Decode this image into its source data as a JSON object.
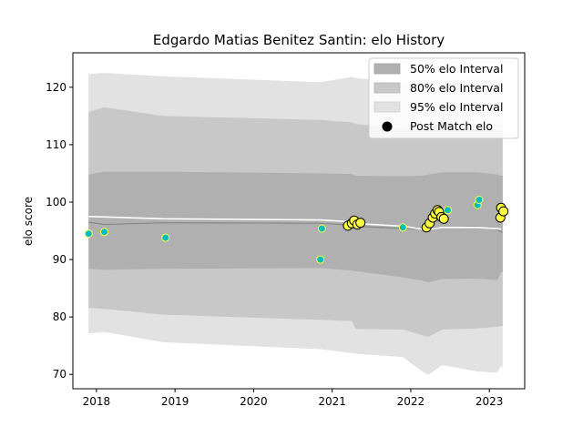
{
  "chart_data": {
    "type": "scatter",
    "title": "Edgardo Matias Benitez Santin: elo History",
    "xlabel": "",
    "ylabel": "elo score",
    "xlim": [
      2017.7,
      2023.45
    ],
    "ylim": [
      67.5,
      126
    ],
    "x_ticks": [
      2018,
      2019,
      2020,
      2021,
      2022,
      2023
    ],
    "y_ticks": [
      70,
      80,
      90,
      100,
      110,
      120
    ],
    "grid": false,
    "legend_position": "top-right",
    "legend": [
      {
        "label": "50% elo Interval",
        "color": "#b0b0b0"
      },
      {
        "label": "80% elo Interval",
        "color": "#c8c8c8"
      },
      {
        "label": "95% elo Interval",
        "color": "#e2e2e2"
      },
      {
        "label": "Post Match elo",
        "color": "#000000"
      }
    ],
    "colors": {
      "band_50": "#b0b0b0",
      "band_80": "#c8c8c8",
      "band_95": "#e2e2e2",
      "mean_line": "#888888",
      "post_match_line": "#ffffff",
      "post_match_fill": "#ffff44",
      "other_fill": "#00bcbc"
    },
    "intervals": {
      "x": [
        2017.9,
        2018.1,
        2018.85,
        2020.85,
        2021.25,
        2021.3,
        2021.9,
        2022.15,
        2022.22,
        2022.4,
        2022.85,
        2023.1,
        2023.15,
        2023.17
      ],
      "mean": [
        96.5,
        96.1,
        96.4,
        96.3,
        96.0,
        95.8,
        95.4,
        95.4,
        95.4,
        95.6,
        95.7,
        95.2,
        94.8,
        94.8
      ],
      "p50_upper": [
        104.8,
        105.3,
        105.3,
        105.0,
        104.9,
        104.6,
        104.5,
        104.6,
        104.8,
        105.2,
        105.2,
        104.8,
        104.6,
        104.6
      ],
      "p50_lower": [
        88.4,
        88.2,
        88.4,
        88.5,
        88.1,
        88.0,
        86.9,
        86.3,
        86.0,
        86.6,
        86.7,
        86.4,
        87.8,
        87.8
      ],
      "p80_upper": [
        115.7,
        116.5,
        115.0,
        114.3,
        113.9,
        113.6,
        112.8,
        112.4,
        112.6,
        113.5,
        113.6,
        112.5,
        112.5,
        112.5
      ],
      "p80_lower": [
        81.6,
        81.4,
        80.4,
        79.5,
        79.3,
        77.9,
        77.8,
        76.8,
        76.5,
        77.8,
        78.0,
        78.3,
        78.4,
        78.4
      ],
      "p95_upper": [
        122.3,
        122.5,
        121.9,
        120.9,
        121.8,
        121.6,
        120.8,
        121.3,
        120.9,
        121.1,
        121.4,
        121.2,
        122.0,
        122.0
      ],
      "p95_lower": [
        77.1,
        77.4,
        75.6,
        74.4,
        73.7,
        73.6,
        73.0,
        70.5,
        69.9,
        71.6,
        70.5,
        70.3,
        71.5,
        71.0
      ]
    },
    "post_match_line": {
      "x": [
        2017.9,
        2018.85,
        2020.85,
        2021.2,
        2021.4,
        2021.9,
        2022.2,
        2022.4,
        2022.85,
        2023.15
      ],
      "y": [
        97.5,
        97.1,
        96.9,
        96.6,
        96.2,
        95.8,
        95.2,
        95.6,
        95.6,
        95.3
      ]
    },
    "series": [
      {
        "name": "Post Match elo",
        "fill": "#ffff44",
        "stroke": "#000000",
        "size": 5,
        "points": [
          {
            "x": 2021.2,
            "y": 95.9
          },
          {
            "x": 2021.25,
            "y": 96.3
          },
          {
            "x": 2021.28,
            "y": 96.8
          },
          {
            "x": 2021.32,
            "y": 96.1
          },
          {
            "x": 2021.36,
            "y": 96.4
          },
          {
            "x": 2022.2,
            "y": 95.6
          },
          {
            "x": 2022.24,
            "y": 96.3
          },
          {
            "x": 2022.28,
            "y": 97.3
          },
          {
            "x": 2022.31,
            "y": 98.0
          },
          {
            "x": 2022.34,
            "y": 98.6
          },
          {
            "x": 2022.36,
            "y": 98.3
          },
          {
            "x": 2022.39,
            "y": 97.4
          },
          {
            "x": 2022.42,
            "y": 97.1
          },
          {
            "x": 2023.14,
            "y": 97.3
          },
          {
            "x": 2023.15,
            "y": 99.0
          },
          {
            "x": 2023.18,
            "y": 98.4
          }
        ]
      },
      {
        "name": "",
        "fill": "#00bcbc",
        "stroke": "#ffff44",
        "size": 4,
        "points": [
          {
            "x": 2017.9,
            "y": 94.5
          },
          {
            "x": 2018.1,
            "y": 94.8
          },
          {
            "x": 2018.88,
            "y": 93.8
          },
          {
            "x": 2020.85,
            "y": 90.0
          },
          {
            "x": 2020.87,
            "y": 95.4
          },
          {
            "x": 2021.9,
            "y": 95.6
          },
          {
            "x": 2022.47,
            "y": 98.6
          },
          {
            "x": 2022.85,
            "y": 99.5
          },
          {
            "x": 2022.87,
            "y": 100.4
          }
        ]
      }
    ]
  }
}
